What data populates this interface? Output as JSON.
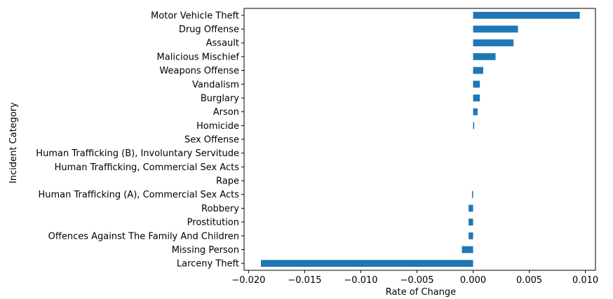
{
  "chart_data": {
    "type": "bar",
    "orientation": "horizontal",
    "xlabel": "Rate of Change",
    "ylabel": "Incident Category",
    "xlim": [
      -0.0204,
      0.0109
    ],
    "xticks": [
      -0.02,
      -0.015,
      -0.01,
      -0.005,
      0.0,
      0.005,
      0.01
    ],
    "xtick_labels": [
      "−0.020",
      "−0.015",
      "−0.010",
      "−0.005",
      "0.000",
      "0.005",
      "0.010"
    ],
    "grid": false,
    "categories": [
      "Motor Vehicle Theft",
      "Drug Offense",
      "Assault",
      "Malicious Mischief",
      "Weapons Offense",
      "Vandalism",
      "Burglary",
      "Arson",
      "Homicide",
      "Sex Offense",
      "Human Trafficking (B), Involuntary Servitude",
      "Human Trafficking, Commercial Sex Acts",
      "Rape",
      "Human Trafficking (A), Commercial Sex Acts",
      "Robbery",
      "Prostitution",
      "Offences Against The Family And Children",
      "Missing Person",
      "Larceny Theft"
    ],
    "values": [
      0.0095,
      0.004,
      0.0036,
      0.002,
      0.0009,
      0.0006,
      0.0006,
      0.0004,
      0.0001,
      0.0,
      0.0,
      0.0,
      0.0,
      -0.0001,
      -0.0004,
      -0.0004,
      -0.0004,
      -0.001,
      -0.0189
    ],
    "colors": {
      "bar": "#1f77b4",
      "axis": "#000000",
      "background": "#ffffff"
    }
  }
}
